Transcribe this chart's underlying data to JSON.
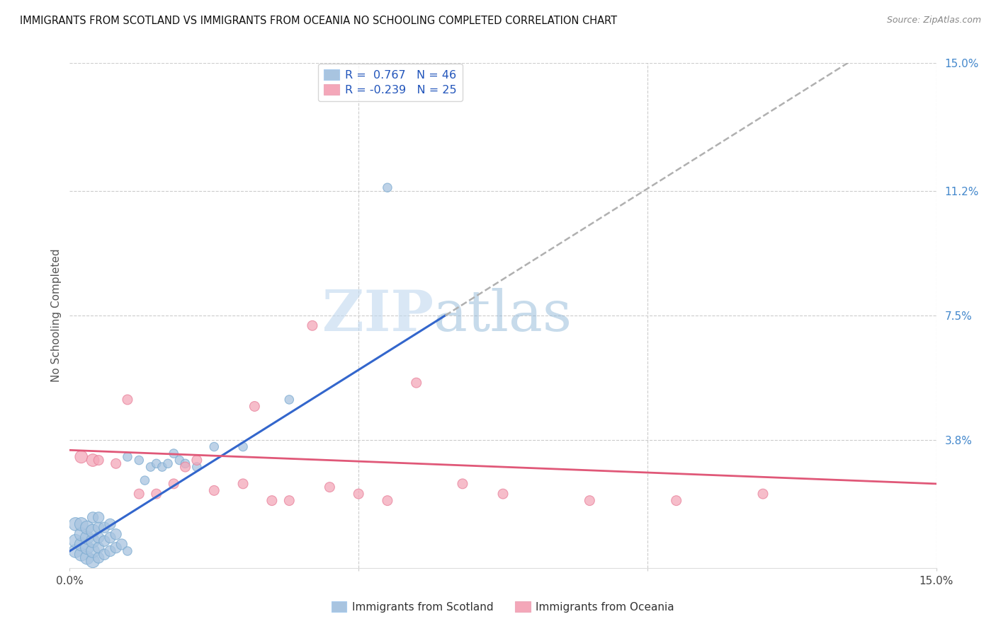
{
  "title": "IMMIGRANTS FROM SCOTLAND VS IMMIGRANTS FROM OCEANIA NO SCHOOLING COMPLETED CORRELATION CHART",
  "source": "Source: ZipAtlas.com",
  "ylabel": "No Schooling Completed",
  "xlim": [
    0.0,
    0.15
  ],
  "ylim": [
    0.0,
    0.15
  ],
  "scotland_color": "#a8c4e0",
  "scotland_edge_color": "#7aaad0",
  "oceania_color": "#f4a7b9",
  "oceania_edge_color": "#e8809a",
  "scotland_R": 0.767,
  "scotland_N": 46,
  "oceania_R": -0.239,
  "oceania_N": 25,
  "legend_label_scotland": "Immigrants from Scotland",
  "legend_label_oceania": "Immigrants from Oceania",
  "watermark_zip": "ZIP",
  "watermark_atlas": "atlas",
  "regression_blue": "#3366cc",
  "regression_pink": "#e05878",
  "regression_gray": "#b0b0b0",
  "grid_color": "#cccccc",
  "right_tick_color": "#4488cc",
  "scotland_scatter_x": [
    0.001,
    0.001,
    0.001,
    0.002,
    0.002,
    0.002,
    0.002,
    0.003,
    0.003,
    0.003,
    0.003,
    0.004,
    0.004,
    0.004,
    0.004,
    0.004,
    0.005,
    0.005,
    0.005,
    0.005,
    0.005,
    0.006,
    0.006,
    0.006,
    0.007,
    0.007,
    0.007,
    0.008,
    0.008,
    0.009,
    0.01,
    0.01,
    0.012,
    0.013,
    0.014,
    0.015,
    0.016,
    0.017,
    0.018,
    0.019,
    0.02,
    0.022,
    0.025,
    0.03,
    0.038,
    0.055
  ],
  "scotland_scatter_y": [
    0.005,
    0.008,
    0.013,
    0.004,
    0.007,
    0.01,
    0.013,
    0.003,
    0.006,
    0.009,
    0.012,
    0.002,
    0.005,
    0.008,
    0.011,
    0.015,
    0.003,
    0.006,
    0.009,
    0.012,
    0.015,
    0.004,
    0.008,
    0.012,
    0.005,
    0.009,
    0.013,
    0.006,
    0.01,
    0.007,
    0.005,
    0.033,
    0.032,
    0.026,
    0.03,
    0.031,
    0.03,
    0.031,
    0.034,
    0.032,
    0.031,
    0.03,
    0.036,
    0.036,
    0.05,
    0.113
  ],
  "oceania_scatter_x": [
    0.002,
    0.004,
    0.005,
    0.008,
    0.01,
    0.012,
    0.015,
    0.018,
    0.02,
    0.022,
    0.025,
    0.03,
    0.032,
    0.035,
    0.038,
    0.042,
    0.045,
    0.05,
    0.055,
    0.06,
    0.068,
    0.075,
    0.09,
    0.105,
    0.12
  ],
  "oceania_scatter_y": [
    0.033,
    0.032,
    0.032,
    0.031,
    0.05,
    0.022,
    0.022,
    0.025,
    0.03,
    0.032,
    0.023,
    0.025,
    0.048,
    0.02,
    0.02,
    0.072,
    0.024,
    0.022,
    0.02,
    0.055,
    0.025,
    0.022,
    0.02,
    0.02,
    0.022
  ],
  "scot_line_x0": 0.0,
  "scot_line_x_solid_end": 0.065,
  "scot_line_x_dash_end": 0.15,
  "oce_line_x0": 0.0,
  "oce_line_x_end": 0.15
}
